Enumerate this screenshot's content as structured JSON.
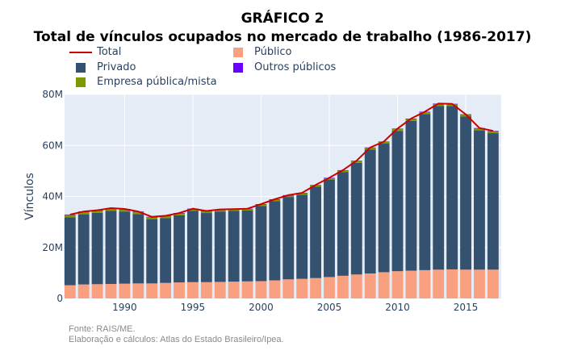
{
  "title": {
    "line1": "GRÁFICO 2",
    "line2": "Total de vínculos ocupados no mercado de trabalho (1986-2017)"
  },
  "source": {
    "line1": "Fonte: RAIS/ME.",
    "line2": "Elaboração e cálculos: Atlas do Estado Brasileiro/Ipea."
  },
  "legend": [
    {
      "label": "Total",
      "kind": "line",
      "color": "#cc0000"
    },
    {
      "label": "Público",
      "kind": "box",
      "color": "#f9a080"
    },
    {
      "label": "Privado",
      "kind": "box",
      "color": "#355170"
    },
    {
      "label": "Outros públicos",
      "kind": "box",
      "color": "#6a00ff"
    },
    {
      "label": "Empresa pública/mista",
      "kind": "box",
      "color": "#7c9a00"
    }
  ],
  "chart_data": {
    "type": "bar",
    "stacked": true,
    "ylabel": "Vínculos",
    "xlabel": "",
    "ylim": [
      0,
      80000000
    ],
    "yticks": [
      0,
      20000000,
      40000000,
      60000000,
      80000000
    ],
    "ytick_labels": [
      "0",
      "20M",
      "40M",
      "60M",
      "80M"
    ],
    "xticks": [
      1990,
      1995,
      2000,
      2005,
      2010,
      2015
    ],
    "xtick_labels": [
      "1990",
      "1995",
      "2000",
      "2005",
      "2010",
      "2015"
    ],
    "grid": true,
    "legend_position": "top-left",
    "colors": {
      "publico": "#f9a080",
      "privado": "#355170",
      "outros": "#6a00ff",
      "empresa": "#7c9a00",
      "total": "#cc0000",
      "plot_bg": "#e5ecf6"
    },
    "x": [
      1986,
      1987,
      1988,
      1989,
      1990,
      1991,
      1992,
      1993,
      1994,
      1995,
      1996,
      1997,
      1998,
      1999,
      2000,
      2001,
      2002,
      2003,
      2004,
      2005,
      2006,
      2007,
      2008,
      2009,
      2010,
      2011,
      2012,
      2013,
      2014,
      2015,
      2016,
      2017
    ],
    "series": [
      {
        "name": "Público",
        "values": [
          5.2,
          5.5,
          5.6,
          5.7,
          5.8,
          5.9,
          5.9,
          6.1,
          6.3,
          6.4,
          6.4,
          6.5,
          6.6,
          6.7,
          6.8,
          7.1,
          7.5,
          7.7,
          8.0,
          8.4,
          8.9,
          9.4,
          9.8,
          10.3,
          10.7,
          10.9,
          11.1,
          11.3,
          11.4,
          11.3,
          11.3,
          11.3
        ]
      },
      {
        "name": "Privado",
        "values": [
          26.6,
          27.5,
          28.0,
          28.7,
          28.3,
          27.2,
          25.2,
          25.4,
          26.3,
          27.9,
          27.1,
          27.6,
          27.7,
          27.8,
          29.5,
          31.1,
          32.3,
          33.0,
          35.8,
          38.2,
          40.7,
          43.8,
          48.6,
          50.4,
          55.0,
          58.7,
          61.2,
          64.2,
          64.0,
          60.0,
          54.6,
          53.5
        ]
      },
      {
        "name": "Empresa pública/mista",
        "values": [
          1.0,
          1.0,
          0.9,
          0.9,
          0.9,
          0.9,
          0.8,
          0.8,
          0.8,
          0.8,
          0.7,
          0.7,
          0.6,
          0.6,
          0.6,
          0.6,
          0.6,
          0.6,
          0.6,
          0.6,
          0.6,
          0.7,
          0.7,
          0.7,
          0.8,
          0.8,
          0.8,
          0.8,
          0.8,
          0.8,
          0.8,
          0.8
        ]
      },
      {
        "name": "Outros públicos",
        "values": [
          0.1,
          0.1,
          0.1,
          0.1,
          0.1,
          0.1,
          0.1,
          0.1,
          0.1,
          0.1,
          0.1,
          0.1,
          0.1,
          0.1,
          0.1,
          0.1,
          0.1,
          0.1,
          0.1,
          0.1,
          0.1,
          0.1,
          0.1,
          0.1,
          0.1,
          0.1,
          0.1,
          0.1,
          0.1,
          0.1,
          0.1,
          0.1
        ]
      }
    ],
    "total": [
      32.9,
      34.1,
      34.6,
      35.4,
      35.1,
      34.1,
      32.0,
      32.4,
      33.5,
      35.2,
      34.3,
      34.9,
      35.0,
      35.2,
      37.0,
      38.9,
      40.5,
      41.4,
      44.5,
      47.3,
      50.3,
      54.0,
      59.2,
      61.5,
      66.6,
      70.5,
      73.2,
      76.4,
      76.3,
      72.2,
      66.8,
      65.7
    ],
    "total_unit": "millions"
  }
}
